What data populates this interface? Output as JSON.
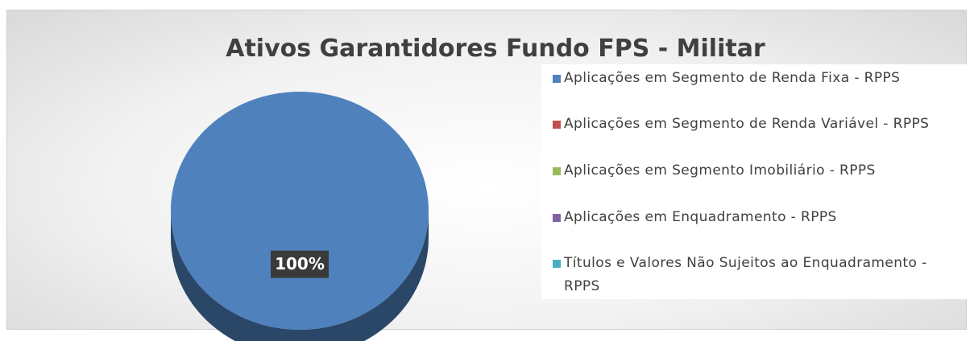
{
  "chart_data": {
    "type": "pie",
    "title": "Ativos Garantidores Fundo FPS - Militar",
    "categories": [
      "Aplicações em Segmento de Renda Fixa - RPPS",
      "Aplicações em Segmento de Renda Variável - RPPS",
      "Aplicações em Segmento Imobiliário - RPPS",
      "Aplicações em Enquadramento - RPPS",
      "Títulos e Valores Não Sujeitos ao Enquadramento - RPPS"
    ],
    "values": [
      100,
      0,
      0,
      0,
      0
    ],
    "value_labels": [
      "100%",
      null,
      null,
      null,
      null
    ],
    "colors": [
      "#4f81bd",
      "#c0504d",
      "#9bbb59",
      "#8064a2",
      "#4bacc6"
    ],
    "legend": "right"
  }
}
